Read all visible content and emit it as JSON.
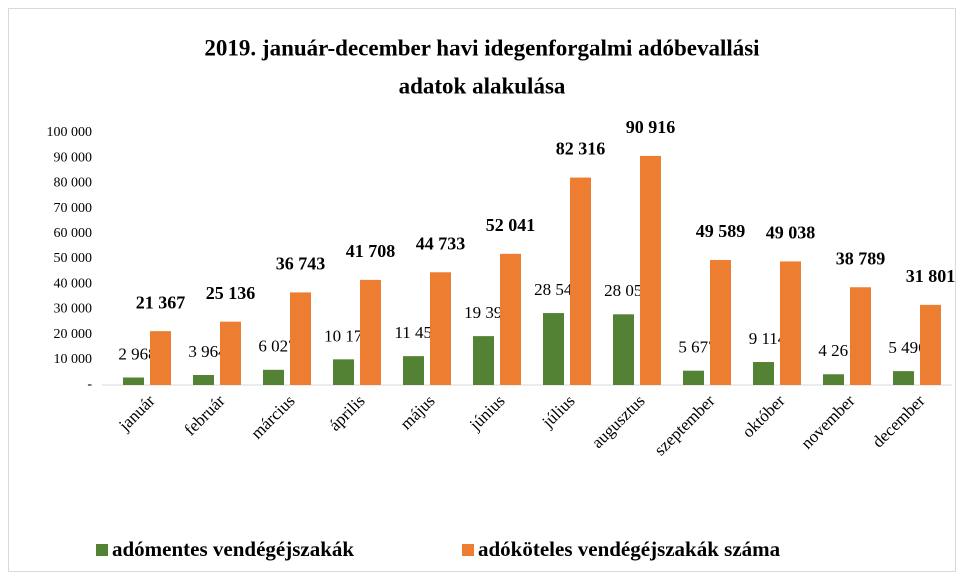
{
  "chart_data": {
    "type": "bar",
    "title": [
      "2019. január-december havi idegenforgalmi adóbevallási",
      "adatok alakulása"
    ],
    "categories": [
      "január",
      "február",
      "március",
      "április",
      "május",
      "június",
      "július",
      "augusztus",
      "szeptember",
      "október",
      "november",
      "december"
    ],
    "series": [
      {
        "name": "adómentes vendégéjszakák",
        "color": "#548235",
        "values": [
          2968,
          3964,
          6027,
          10177,
          11453,
          19393,
          28548,
          28050,
          5677,
          9114,
          4261,
          5496
        ],
        "value_labels": [
          "2 968",
          "3 964",
          "6 027",
          "10 177",
          "11 453",
          "19 393",
          "28 548",
          "28 050",
          "5 677",
          "9 114",
          "4 261",
          "5 496"
        ]
      },
      {
        "name": "adóköteles vendégéjszakák száma",
        "color": "#ed7d31",
        "values": [
          21367,
          25136,
          36743,
          41708,
          44733,
          52041,
          82316,
          90916,
          49589,
          49038,
          38789,
          31801
        ],
        "value_labels": [
          "21 367",
          "25 136",
          "36 743",
          "41 708",
          "44 733",
          "52 041",
          "82 316",
          "90 916",
          "49 589",
          "49 038",
          "38 789",
          "31 801"
        ]
      }
    ],
    "ylim": [
      0,
      100000
    ],
    "yticks": [
      {
        "value": 0,
        "label": "-"
      },
      {
        "value": 10000,
        "label": "10 000"
      },
      {
        "value": 20000,
        "label": "20 000"
      },
      {
        "value": 30000,
        "label": "30 000"
      },
      {
        "value": 40000,
        "label": "40 000"
      },
      {
        "value": 50000,
        "label": "50 000"
      },
      {
        "value": 60000,
        "label": "60 000"
      },
      {
        "value": 70000,
        "label": "70 000"
      },
      {
        "value": 80000,
        "label": "80 000"
      },
      {
        "value": 90000,
        "label": "90 000"
      },
      {
        "value": 100000,
        "label": "100 000"
      }
    ],
    "grid": false,
    "legend": "bottom"
  }
}
